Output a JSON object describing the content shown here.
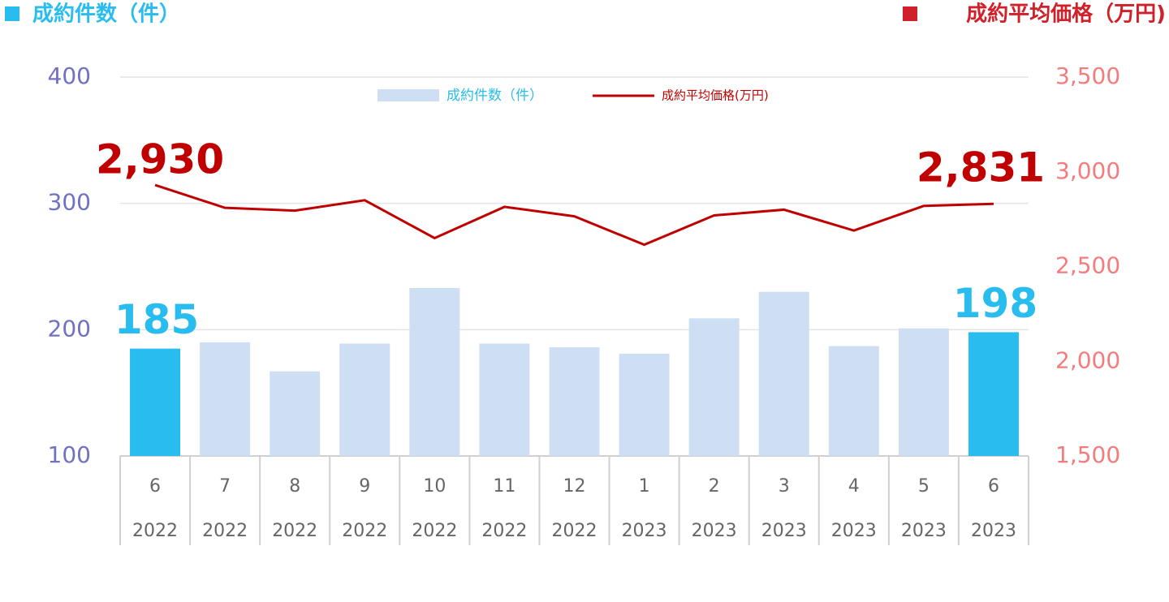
{
  "chart_data": {
    "type": "bar",
    "left_header": "成約件数（件）",
    "right_header": "成約平均価格（万円)",
    "categories": [
      "6",
      "7",
      "8",
      "9",
      "10",
      "11",
      "12",
      "1",
      "2",
      "3",
      "4",
      "5",
      "6"
    ],
    "years": [
      "2022",
      "2022",
      "2022",
      "2022",
      "2022",
      "2022",
      "2022",
      "2023",
      "2023",
      "2023",
      "2023",
      "2023",
      "2023"
    ],
    "ylim": [
      100,
      400
    ],
    "yticks": [
      100,
      200,
      300,
      400
    ],
    "y2lim": [
      1500,
      3500
    ],
    "y2ticks": [
      {
        "value": 1500,
        "label": "1,500"
      },
      {
        "value": 2000,
        "label": "2,000"
      },
      {
        "value": 2500,
        "label": "2,500"
      },
      {
        "value": 3000,
        "label": "3,000"
      },
      {
        "value": 3500,
        "label": "3,500"
      }
    ],
    "grid": true,
    "legend": "top",
    "series": [
      {
        "name": "成約件数（件）",
        "type": "bar",
        "color": "#cfdff3",
        "colors": [
          "#29bdef",
          "#cfdff3",
          "#cfdff3",
          "#cfdff3",
          "#cfdff3",
          "#cfdff3",
          "#cfdff3",
          "#cfdff3",
          "#cfdff3",
          "#cfdff3",
          "#cfdff3",
          "#cfdff3",
          "#29bdef"
        ],
        "label_color": "#29bdef",
        "values": [
          185,
          190,
          167,
          189,
          233,
          189,
          186,
          181,
          209,
          230,
          187,
          201,
          198
        ],
        "value_labels": [
          "185",
          null,
          null,
          null,
          null,
          null,
          null,
          null,
          null,
          null,
          null,
          null,
          "198"
        ]
      },
      {
        "name": "成約平均価格(万円)",
        "type": "line",
        "axis": "y2",
        "color": "#c00000",
        "values": [
          2930,
          2810,
          2795,
          2850,
          2650,
          2815,
          2765,
          2615,
          2770,
          2800,
          2690,
          2820,
          2831
        ],
        "value_labels": [
          "2,930",
          null,
          null,
          null,
          null,
          null,
          null,
          null,
          null,
          null,
          null,
          null,
          "2,831"
        ]
      }
    ]
  }
}
